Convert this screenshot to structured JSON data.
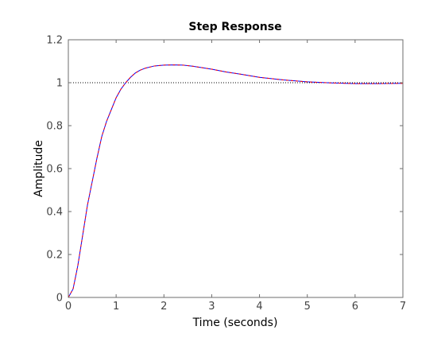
{
  "chart_data": {
    "type": "line",
    "title": "Step Response",
    "xlabel": "Time (seconds)",
    "ylabel": "Amplitude",
    "xlim": [
      0,
      7
    ],
    "ylim": [
      0,
      1.2
    ],
    "x_ticks": [
      0,
      1,
      2,
      3,
      4,
      5,
      6,
      7
    ],
    "y_ticks": [
      0,
      0.2,
      0.4,
      0.6,
      0.8,
      1,
      1.2
    ],
    "grid": false,
    "reference_line": {
      "y": 1,
      "style": "dotted",
      "color": "#000000"
    },
    "series": [
      {
        "color": "#0000ff",
        "x": [
          0,
          0.1,
          0.2,
          0.3,
          0.4,
          0.5,
          0.6,
          0.7,
          0.8,
          0.9,
          1.0,
          1.1,
          1.2,
          1.3,
          1.4,
          1.5,
          1.6,
          1.8,
          2.0,
          2.2,
          2.4,
          2.6,
          2.8,
          3.0,
          3.3,
          3.6,
          4.0,
          4.5,
          5.0,
          5.5,
          6.0,
          6.5,
          7.0
        ],
        "y": [
          0,
          0.04,
          0.15,
          0.29,
          0.43,
          0.54,
          0.65,
          0.75,
          0.82,
          0.875,
          0.93,
          0.97,
          1.0,
          1.025,
          1.045,
          1.058,
          1.067,
          1.078,
          1.082,
          1.083,
          1.082,
          1.077,
          1.07,
          1.063,
          1.05,
          1.04,
          1.025,
          1.013,
          1.004,
          0.999,
          0.996,
          0.996,
          0.997
        ]
      },
      {
        "color": "#ff0000",
        "x": [
          0,
          0.1,
          0.2,
          0.3,
          0.4,
          0.5,
          0.6,
          0.7,
          0.8,
          0.9,
          1.0,
          1.1,
          1.2,
          1.3,
          1.4,
          1.5,
          1.6,
          1.8,
          2.0,
          2.2,
          2.4,
          2.6,
          2.8,
          3.0,
          3.3,
          3.6,
          4.0,
          4.5,
          5.0,
          5.5,
          6.0,
          6.5,
          7.0
        ],
        "y": [
          0,
          0.04,
          0.15,
          0.29,
          0.43,
          0.54,
          0.65,
          0.75,
          0.82,
          0.875,
          0.93,
          0.97,
          1.0,
          1.025,
          1.045,
          1.058,
          1.067,
          1.078,
          1.082,
          1.083,
          1.082,
          1.077,
          1.07,
          1.063,
          1.05,
          1.04,
          1.025,
          1.013,
          1.004,
          0.999,
          0.996,
          0.996,
          0.997
        ]
      }
    ]
  }
}
